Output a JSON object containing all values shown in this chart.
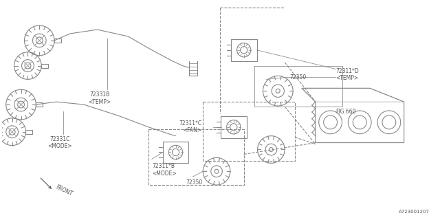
{
  "bg_color": "#ffffff",
  "line_color": "#888888",
  "text_color": "#555555",
  "fig_width": 6.4,
  "fig_height": 3.2,
  "dpi": 100,
  "part_number": "A723001207",
  "labels": {
    "72331B": [
      1.42,
      1.62,
      "72331B\n<TEMP>"
    ],
    "72331C": [
      0.7,
      1.15,
      "72331C\n<MODE>"
    ],
    "72311B": [
      2.35,
      0.73,
      "72311*B\n<MODE>"
    ],
    "72350_bot": [
      2.8,
      0.5,
      "72350"
    ],
    "72311C": [
      3.55,
      1.42,
      "72311*C\n<FAN>"
    ],
    "72350_top": [
      4.05,
      2.12,
      "72350"
    ],
    "72311D": [
      4.85,
      2.05,
      "72311*D\n<TEMP>"
    ],
    "FIG660": [
      4.9,
      1.62,
      "FIG.660"
    ],
    "FRONT": [
      0.65,
      0.28,
      "FRONT"
    ]
  }
}
